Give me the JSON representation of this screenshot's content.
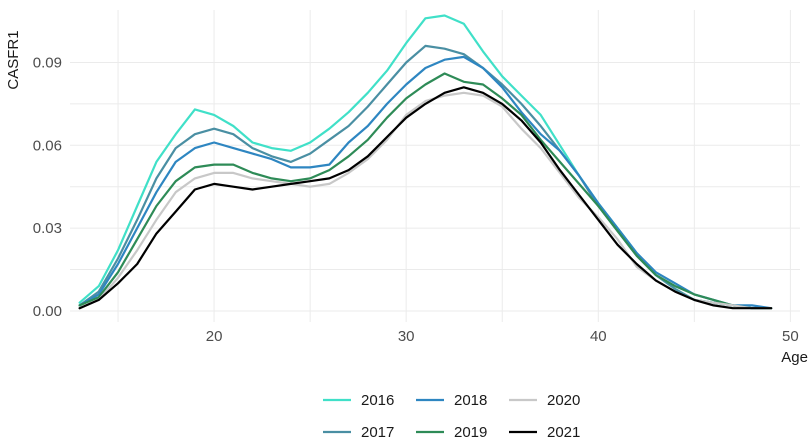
{
  "chart_data": {
    "type": "line",
    "xlabel": "Age",
    "ylabel": "CASFR1",
    "xlim": [
      12.5,
      50.5
    ],
    "ylim": [
      -0.004,
      0.109
    ],
    "x_ticks": [
      20,
      30,
      40,
      50
    ],
    "x_tick_labels": [
      "20",
      "30",
      "40",
      "50"
    ],
    "y_ticks": [
      0.0,
      0.03,
      0.06,
      0.09
    ],
    "y_tick_labels": [
      "0.00",
      "0.03",
      "0.06",
      "0.09"
    ],
    "grid": true,
    "legend_position": "bottom",
    "x": [
      13,
      14,
      15,
      16,
      17,
      18,
      19,
      20,
      21,
      22,
      23,
      24,
      25,
      26,
      27,
      28,
      29,
      30,
      31,
      32,
      33,
      34,
      35,
      36,
      37,
      38,
      39,
      40,
      41,
      42,
      43,
      44,
      45,
      46,
      47,
      48,
      49
    ],
    "series": [
      {
        "name": "2016",
        "color": "#40e0c8",
        "values": [
          0.003,
          0.009,
          0.022,
          0.038,
          0.054,
          0.064,
          0.073,
          0.071,
          0.067,
          0.061,
          0.059,
          0.058,
          0.061,
          0.066,
          0.072,
          0.079,
          0.087,
          0.097,
          0.106,
          0.107,
          0.104,
          0.094,
          0.085,
          0.078,
          0.071,
          0.06,
          0.049,
          0.039,
          0.03,
          0.021,
          0.013,
          0.008,
          0.004,
          0.003,
          0.002,
          0.001,
          0.001
        ]
      },
      {
        "name": "2017",
        "color": "#4a8fa3",
        "values": [
          0.002,
          0.007,
          0.019,
          0.033,
          0.048,
          0.059,
          0.064,
          0.066,
          0.064,
          0.059,
          0.056,
          0.054,
          0.057,
          0.062,
          0.067,
          0.074,
          0.082,
          0.09,
          0.096,
          0.095,
          0.093,
          0.088,
          0.082,
          0.075,
          0.067,
          0.058,
          0.049,
          0.038,
          0.029,
          0.02,
          0.013,
          0.008,
          0.004,
          0.003,
          0.002,
          0.001,
          0.001
        ]
      },
      {
        "name": "2018",
        "color": "#2e86c1",
        "values": [
          0.002,
          0.006,
          0.017,
          0.03,
          0.043,
          0.054,
          0.059,
          0.061,
          0.059,
          0.057,
          0.055,
          0.052,
          0.052,
          0.053,
          0.061,
          0.067,
          0.075,
          0.082,
          0.088,
          0.091,
          0.092,
          0.088,
          0.081,
          0.072,
          0.064,
          0.058,
          0.049,
          0.039,
          0.03,
          0.021,
          0.014,
          0.01,
          0.006,
          0.004,
          0.002,
          0.002,
          0.001
        ]
      },
      {
        "name": "2019",
        "color": "#2e8b57",
        "values": [
          0.002,
          0.005,
          0.014,
          0.026,
          0.038,
          0.047,
          0.052,
          0.053,
          0.053,
          0.05,
          0.048,
          0.047,
          0.048,
          0.051,
          0.056,
          0.062,
          0.07,
          0.077,
          0.082,
          0.086,
          0.083,
          0.082,
          0.077,
          0.071,
          0.062,
          0.054,
          0.046,
          0.038,
          0.029,
          0.02,
          0.013,
          0.009,
          0.006,
          0.004,
          0.002,
          0.001,
          0.001
        ]
      },
      {
        "name": "2020",
        "color": "#c8c8c8",
        "values": [
          0.001,
          0.004,
          0.012,
          0.022,
          0.033,
          0.043,
          0.048,
          0.05,
          0.05,
          0.048,
          0.047,
          0.046,
          0.045,
          0.046,
          0.05,
          0.055,
          0.062,
          0.071,
          0.076,
          0.078,
          0.079,
          0.078,
          0.074,
          0.066,
          0.059,
          0.05,
          0.041,
          0.034,
          0.026,
          0.016,
          0.011,
          0.007,
          0.004,
          0.003,
          0.002,
          0.001,
          0.001
        ]
      },
      {
        "name": "2021",
        "color": "#000000",
        "values": [
          0.001,
          0.004,
          0.01,
          0.017,
          0.028,
          0.036,
          0.044,
          0.046,
          0.045,
          0.044,
          0.045,
          0.046,
          0.047,
          0.048,
          0.051,
          0.056,
          0.063,
          0.07,
          0.075,
          0.079,
          0.081,
          0.079,
          0.075,
          0.069,
          0.061,
          0.051,
          0.042,
          0.033,
          0.024,
          0.017,
          0.011,
          0.007,
          0.004,
          0.002,
          0.001,
          0.001,
          0.001
        ]
      }
    ]
  }
}
